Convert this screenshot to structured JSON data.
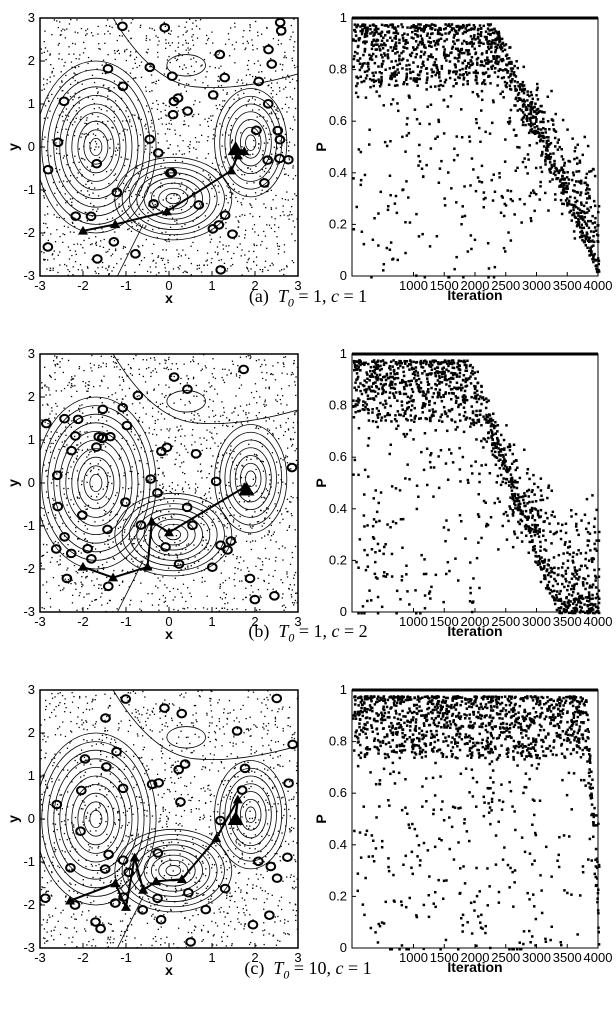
{
  "panels": [
    {
      "caption": {
        "prefix": "(a)",
        "t0_value": "1",
        "c_value": "1"
      },
      "contour": {
        "xlabel": "x",
        "ylabel": "y",
        "xlim": [
          -3,
          3
        ],
        "ylim": [
          -3,
          3
        ],
        "xticks": [
          "-3",
          "-2",
          "-1",
          "0",
          "1",
          "2",
          "3"
        ],
        "yticks": [
          "-3",
          "-2",
          "-1",
          "0",
          "1",
          "2",
          "3"
        ],
        "path": [
          [
            -2.0,
            -1.95
          ],
          [
            -1.25,
            -1.8
          ],
          [
            -0.05,
            -1.5
          ],
          [
            1.45,
            -0.55
          ],
          [
            1.6,
            -0.2
          ],
          [
            1.75,
            -0.1
          ],
          [
            1.55,
            -0.05
          ]
        ]
      },
      "scatter": {
        "type": "scatter",
        "xlabel": "Iteration",
        "ylabel": "P",
        "xlim": [
          0,
          4000
        ],
        "ylim": [
          0,
          1
        ],
        "xticks": [
          "1000",
          "1500",
          "2000",
          "2500",
          "3000",
          "3500",
          "4000"
        ],
        "yticks": [
          "0",
          "0.2",
          "0.4",
          "0.6",
          "0.8",
          "1"
        ],
        "collapse_start": 2300,
        "collapse_end": 4000
      }
    },
    {
      "caption": {
        "prefix": "(b)",
        "t0_value": "1",
        "c_value": "2"
      },
      "contour": {
        "xlabel": "x",
        "ylabel": "y",
        "xlim": [
          -3,
          3
        ],
        "ylim": [
          -3,
          3
        ],
        "xticks": [
          "-3",
          "-2",
          "-1",
          "0",
          "1",
          "2",
          "3"
        ],
        "yticks": [
          "-3",
          "-2",
          "-1",
          "0",
          "1",
          "2",
          "3"
        ],
        "path": [
          [
            -2.0,
            -1.95
          ],
          [
            -1.3,
            -2.2
          ],
          [
            -0.5,
            -1.95
          ],
          [
            -0.4,
            -0.9
          ],
          [
            0.0,
            -1.15
          ],
          [
            1.75,
            -0.1
          ],
          [
            1.8,
            -0.15
          ]
        ]
      },
      "scatter": {
        "type": "scatter",
        "xlabel": "Iteration",
        "ylabel": "P",
        "xlim": [
          0,
          4000
        ],
        "ylim": [
          0,
          1
        ],
        "xticks": [
          "1000",
          "1500",
          "2000",
          "2500",
          "3000",
          "3500",
          "4000"
        ],
        "yticks": [
          "0",
          "0.2",
          "0.4",
          "0.6",
          "0.8",
          "1"
        ],
        "collapse_start": 1900,
        "collapse_end": 3300
      }
    },
    {
      "caption": {
        "prefix": "(c)",
        "t0_value": "10",
        "c_value": "1"
      },
      "contour": {
        "xlabel": "x",
        "ylabel": "y",
        "xlim": [
          -3,
          3
        ],
        "ylim": [
          -3,
          3
        ],
        "xticks": [
          "-3",
          "-2",
          "-1",
          "0",
          "1",
          "2",
          "3"
        ],
        "yticks": [
          "-3",
          "-2",
          "-1",
          "0",
          "1",
          "2",
          "3"
        ],
        "path": [
          [
            -2.3,
            -1.9
          ],
          [
            -1.25,
            -1.5
          ],
          [
            -1.0,
            -2.05
          ],
          [
            -0.8,
            -0.9
          ],
          [
            -0.6,
            -1.65
          ],
          [
            -0.3,
            -1.45
          ],
          [
            0.3,
            -1.4
          ],
          [
            1.1,
            -0.45
          ],
          [
            1.6,
            0.45
          ],
          [
            1.55,
            0.0
          ]
        ]
      },
      "scatter": {
        "type": "scatter",
        "xlabel": "Iteration",
        "ylabel": "P",
        "xlim": [
          0,
          4000
        ],
        "ylim": [
          0,
          1
        ],
        "xticks": [
          "1000",
          "1500",
          "2000",
          "2500",
          "3000",
          "3500",
          "4000"
        ],
        "yticks": [
          "0",
          "0.2",
          "0.4",
          "0.6",
          "0.8",
          "1"
        ],
        "collapse_start": 3800,
        "collapse_end": 4000
      }
    }
  ],
  "chart_data": [
    {
      "type": "line",
      "xlabel": "x",
      "ylabel": "y",
      "xlim": [
        -3,
        3
      ],
      "ylim": [
        -3,
        3
      ],
      "series": [
        {
          "x": [
            -2.0,
            -1.25,
            -0.05,
            1.45,
            1.6,
            1.75,
            1.55
          ],
          "values": [
            -1.95,
            -1.8,
            -1.5,
            -0.55,
            -0.2,
            -0.1,
            -0.05
          ]
        }
      ]
    },
    {
      "type": "scatter",
      "xlabel": "Iteration",
      "ylabel": "P",
      "xlim": [
        0,
        4000
      ],
      "ylim": [
        0,
        1
      ],
      "grid": false,
      "collapse_start": 2300,
      "collapse_end": 4000
    },
    {
      "type": "line",
      "xlabel": "x",
      "ylabel": "y",
      "xlim": [
        -3,
        3
      ],
      "ylim": [
        -3,
        3
      ],
      "series": [
        {
          "x": [
            -2.0,
            -1.3,
            -0.5,
            -0.4,
            0.0,
            1.75,
            1.8
          ],
          "values": [
            -1.95,
            -2.2,
            -1.95,
            -0.9,
            -1.15,
            -0.1,
            -0.15
          ]
        }
      ]
    },
    {
      "type": "scatter",
      "xlabel": "Iteration",
      "ylabel": "P",
      "xlim": [
        0,
        4000
      ],
      "ylim": [
        0,
        1
      ],
      "grid": false,
      "collapse_start": 1900,
      "collapse_end": 3300
    },
    {
      "type": "line",
      "xlabel": "x",
      "ylabel": "y",
      "xlim": [
        -3,
        3
      ],
      "ylim": [
        -3,
        3
      ],
      "series": [
        {
          "x": [
            -2.3,
            -1.25,
            -1.0,
            -0.8,
            -0.6,
            -0.3,
            0.3,
            1.1,
            1.6,
            1.55
          ],
          "values": [
            -1.9,
            -1.5,
            -2.05,
            -0.9,
            -1.65,
            -1.45,
            -1.4,
            -0.45,
            0.45,
            0.0
          ]
        }
      ]
    },
    {
      "type": "scatter",
      "xlabel": "Iteration",
      "ylabel": "P",
      "xlim": [
        0,
        4000
      ],
      "ylim": [
        0,
        1
      ],
      "grid": false,
      "collapse_start": 3800,
      "collapse_end": 4000
    }
  ]
}
